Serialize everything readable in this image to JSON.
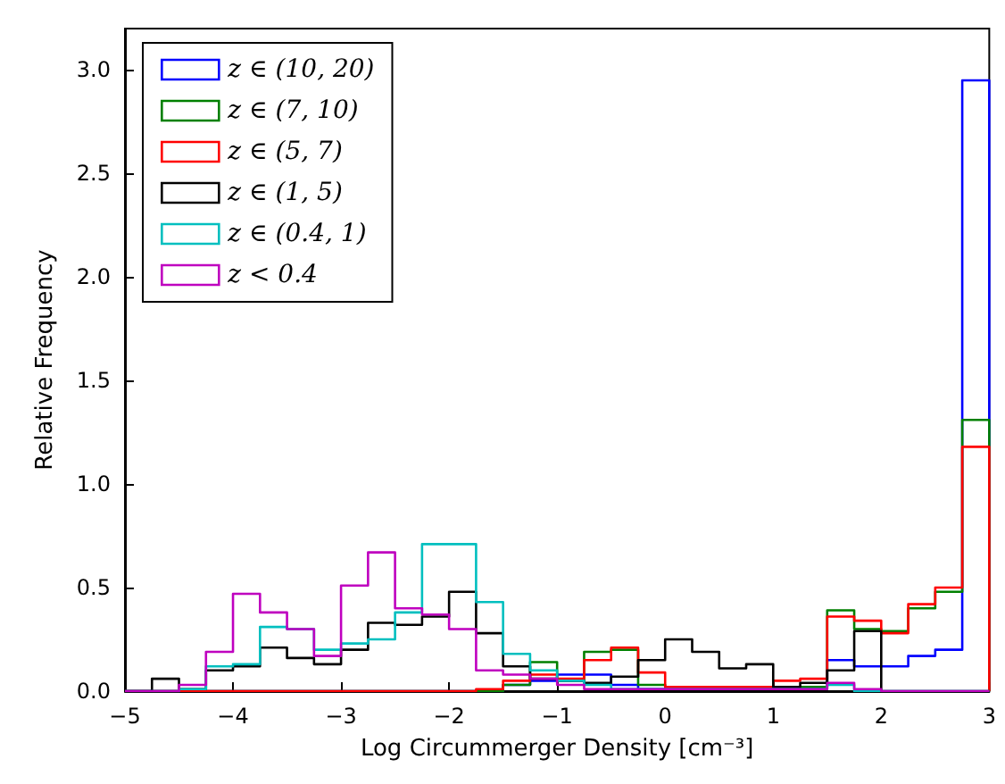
{
  "chart_data": {
    "type": "histogram",
    "xlabel": "Log Circummerger Density [cm⁻³]",
    "ylabel": "Relative Frequency",
    "bins": [
      -5,
      -4.75,
      -4.5,
      -4.25,
      -4,
      -3.75,
      -3.5,
      -3.25,
      -3,
      -2.75,
      -2.5,
      -2.25,
      -2,
      -1.75,
      -1.5,
      -1.25,
      -1,
      -0.75,
      -0.5,
      -0.25,
      0,
      0.25,
      0.5,
      0.75,
      1,
      1.25,
      1.5,
      1.75,
      2,
      2.25,
      2.5,
      2.75,
      3
    ],
    "series": [
      {
        "name": "z ∈ (10, 20)",
        "color": "#0000ff",
        "values": [
          0,
          0,
          0,
          0,
          0,
          0,
          0,
          0,
          0,
          0,
          0,
          0,
          0,
          0,
          0.03,
          0.05,
          0.08,
          0.08,
          0.03,
          0.01,
          0.01,
          0.01,
          0.01,
          0.01,
          0.02,
          0.02,
          0.15,
          0.12,
          0.12,
          0.17,
          0.2,
          2.95
        ]
      },
      {
        "name": "z ∈ (7, 10)",
        "color": "#008000",
        "values": [
          0,
          0,
          0,
          0,
          0,
          0,
          0,
          0,
          0,
          0,
          0,
          0,
          0,
          0,
          0.03,
          0.14,
          0.05,
          0.19,
          0.2,
          0.03,
          0.02,
          0.02,
          0.02,
          0.02,
          0.02,
          0.02,
          0.39,
          0.3,
          0.29,
          0.4,
          0.48,
          1.31
        ]
      },
      {
        "name": "z ∈ (5, 7)",
        "color": "#ff0000",
        "values": [
          0,
          0,
          0,
          0,
          0,
          0,
          0,
          0,
          0,
          0,
          0,
          0,
          0,
          0.01,
          0.05,
          0.08,
          0.06,
          0.15,
          0.21,
          0.09,
          0.02,
          0.02,
          0.02,
          0.02,
          0.05,
          0.06,
          0.36,
          0.34,
          0.28,
          0.42,
          0.5,
          1.18
        ]
      },
      {
        "name": "z ∈ (1, 5)",
        "color": "#000000",
        "values": [
          0,
          0.06,
          0.01,
          0.1,
          0.12,
          0.21,
          0.16,
          0.13,
          0.2,
          0.33,
          0.32,
          0.36,
          0.48,
          0.28,
          0.12,
          0.06,
          0.05,
          0.04,
          0.07,
          0.15,
          0.25,
          0.19,
          0.11,
          0.13,
          0.02,
          0.04,
          0.1,
          0.29,
          0,
          0,
          0,
          0
        ]
      },
      {
        "name": "z ∈ (0.4, 1)",
        "color": "#00bfbf",
        "values": [
          0,
          0,
          0.01,
          0.12,
          0.13,
          0.31,
          0.3,
          0.2,
          0.23,
          0.25,
          0.38,
          0.71,
          0.71,
          0.43,
          0.18,
          0.1,
          0.05,
          0.03,
          0.01,
          0.01,
          0.01,
          0.01,
          0.01,
          0.01,
          0.01,
          0.01,
          0.03,
          0,
          0,
          0,
          0,
          0
        ]
      },
      {
        "name": "z < 0.4",
        "color": "#bf00bf",
        "values": [
          0,
          0,
          0.03,
          0.19,
          0.47,
          0.38,
          0.3,
          0.17,
          0.51,
          0.67,
          0.4,
          0.37,
          0.3,
          0.1,
          0.08,
          0.06,
          0.03,
          0.01,
          0.01,
          0.01,
          0.01,
          0.01,
          0.01,
          0.01,
          0.01,
          0.01,
          0.04,
          0.01,
          0,
          0,
          0,
          0
        ]
      }
    ],
    "xlim": [
      -5,
      3
    ],
    "xticks": [
      -5,
      -4,
      -3,
      -2,
      -1,
      0,
      1,
      2,
      3
    ],
    "ylim": [
      0,
      3.2
    ],
    "yticks": [
      {
        "value": 0,
        "label": "0.0"
      },
      {
        "value": 0.5,
        "label": "0.5"
      },
      {
        "value": 1,
        "label": "1.0"
      },
      {
        "value": 1.5,
        "label": "1.5"
      },
      {
        "value": 2,
        "label": "2.0"
      },
      {
        "value": 2.5,
        "label": "2.5"
      },
      {
        "value": 3,
        "label": "3.0"
      }
    ],
    "legend": "top left",
    "grid": false
  }
}
